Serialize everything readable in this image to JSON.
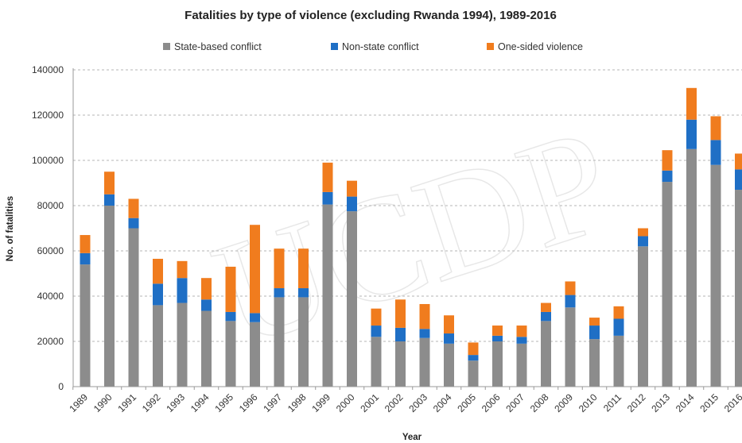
{
  "chart_data": {
    "type": "bar",
    "stacked": true,
    "title": "Fatalities by type of violence (excluding Rwanda 1994), 1989-2016",
    "xlabel": "Year",
    "ylabel": "No. of fatalities",
    "ylim": [
      0,
      140000
    ],
    "yticks": [
      0,
      20000,
      40000,
      60000,
      80000,
      100000,
      120000,
      140000
    ],
    "grid": true,
    "legend_position": "top",
    "watermark": "UCDP",
    "categories": [
      "1989",
      "1990",
      "1991",
      "1992",
      "1993",
      "1994",
      "1995",
      "1996",
      "1997",
      "1998",
      "1999",
      "2000",
      "2001",
      "2002",
      "2003",
      "2004",
      "2005",
      "2006",
      "2007",
      "2008",
      "2009",
      "2010",
      "2011",
      "2012",
      "2013",
      "2014",
      "2015",
      "2016"
    ],
    "series": [
      {
        "name": "State-based conflict",
        "color": "#8c8c8c",
        "values": [
          54000,
          80000,
          70000,
          36000,
          37000,
          33500,
          29000,
          28500,
          39500,
          39500,
          80500,
          77500,
          22000,
          20000,
          21500,
          19000,
          11500,
          20000,
          19000,
          29000,
          35000,
          21000,
          22500,
          62000,
          90500,
          105000,
          98000,
          87000
        ]
      },
      {
        "name": "Non-state conflict",
        "color": "#1f6fc5",
        "values": [
          5000,
          5000,
          4500,
          9500,
          11000,
          5000,
          4000,
          4000,
          4000,
          4000,
          5500,
          6500,
          5000,
          6000,
          4000,
          4500,
          2500,
          2500,
          3000,
          4000,
          5500,
          6000,
          7500,
          4500,
          5000,
          13000,
          11000,
          9000
        ]
      },
      {
        "name": "One-sided violence",
        "color": "#f07c1e",
        "values": [
          8000,
          10000,
          8500,
          11000,
          7500,
          9500,
          20000,
          39000,
          17500,
          17500,
          13000,
          7000,
          7500,
          12500,
          11000,
          8000,
          5500,
          4500,
          5000,
          4000,
          6000,
          3500,
          5500,
          3500,
          9000,
          14000,
          10500,
          7000
        ]
      }
    ]
  }
}
